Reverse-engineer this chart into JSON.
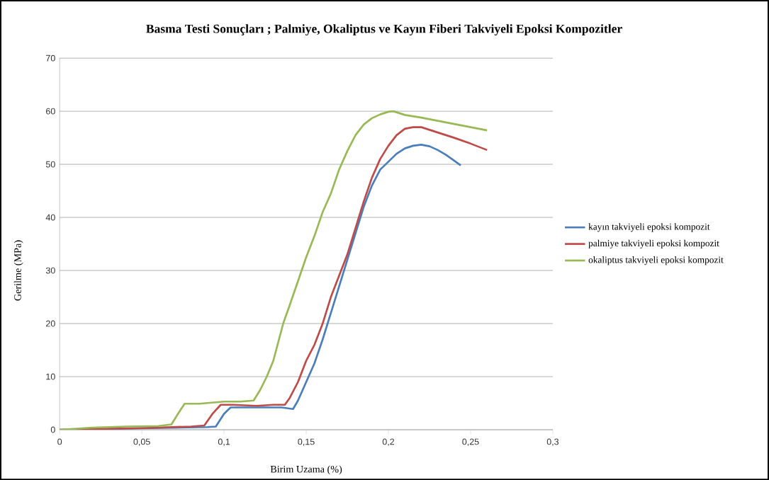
{
  "chart_data": {
    "type": "line",
    "title": "Basma Testi Sonuçları ; Palmiye, Okaliptus ve Kayın Fiberi Takviyeli Epoksi Kompozitler",
    "xlabel": "Birim Uzama (%)",
    "ylabel": "Gerilme  (MPa)",
    "xlim": [
      0,
      0.3
    ],
    "ylim": [
      0,
      70
    ],
    "xticks": [
      0,
      {
        "value": 0.05,
        "label": "0,05"
      },
      {
        "value": 0.1,
        "label": "0,1"
      },
      {
        "value": 0.15,
        "label": "0,15"
      },
      {
        "value": 0.2,
        "label": "0,2"
      },
      {
        "value": 0.25,
        "label": "0,25"
      },
      {
        "value": 0.3,
        "label": "0,3"
      }
    ],
    "yticks": [
      0,
      10,
      20,
      30,
      40,
      50,
      60,
      70
    ],
    "grid": "y",
    "legend": "right",
    "marker": "none",
    "line_style": "solid",
    "series": [
      {
        "name": "kayın takviyeli epoksi kompozit",
        "color": "#4a7ebb",
        "x": [
          0,
          0.09,
          0.095,
          0.1,
          0.104,
          0.12,
          0.135,
          0.142,
          0.145,
          0.15,
          0.155,
          0.16,
          0.165,
          0.17,
          0.175,
          0.18,
          0.185,
          0.19,
          0.195,
          0.2,
          0.205,
          0.21,
          0.215,
          0.22,
          0.225,
          0.23,
          0.235,
          0.24,
          0.244
        ],
        "values": [
          0,
          0.5,
          0.6,
          3,
          4.2,
          4.2,
          4.2,
          3.9,
          5.5,
          9,
          12.5,
          17,
          22,
          27,
          32,
          37,
          42,
          46,
          49,
          50.5,
          52,
          53,
          53.5,
          53.7,
          53.4,
          52.7,
          51.8,
          50.7,
          49.8
        ]
      },
      {
        "name": "palmiye takviyeli epoksi kompozit",
        "color": "#be4b48",
        "x": [
          0,
          0.05,
          0.08,
          0.088,
          0.093,
          0.098,
          0.105,
          0.12,
          0.13,
          0.137,
          0.14,
          0.145,
          0.15,
          0.155,
          0.16,
          0.165,
          0.17,
          0.175,
          0.18,
          0.185,
          0.19,
          0.195,
          0.2,
          0.205,
          0.21,
          0.215,
          0.22,
          0.23,
          0.24,
          0.25,
          0.26
        ],
        "values": [
          0,
          0.3,
          0.6,
          0.8,
          3,
          4.7,
          4.7,
          4.5,
          4.7,
          4.7,
          6,
          9,
          13,
          16,
          20,
          25,
          29,
          33,
          38,
          43,
          47.5,
          51,
          53.5,
          55.5,
          56.7,
          57,
          57,
          56,
          55,
          53.9,
          52.7
        ]
      },
      {
        "name": "okaliptus takviyeli epoksi kompozit",
        "color": "#98b954",
        "x": [
          0,
          0.02,
          0.04,
          0.06,
          0.068,
          0.072,
          0.076,
          0.085,
          0.1,
          0.11,
          0.118,
          0.122,
          0.126,
          0.13,
          0.136,
          0.14,
          0.145,
          0.15,
          0.155,
          0.16,
          0.165,
          0.17,
          0.175,
          0.18,
          0.185,
          0.19,
          0.195,
          0.2,
          0.203,
          0.21,
          0.22,
          0.23,
          0.24,
          0.25,
          0.26
        ],
        "values": [
          0,
          0.4,
          0.6,
          0.7,
          1,
          3,
          4.9,
          4.9,
          5.3,
          5.3,
          5.5,
          7.5,
          10,
          13,
          20,
          23.5,
          28,
          32.5,
          36.5,
          41,
          44.5,
          49,
          52.5,
          55.5,
          57.5,
          58.7,
          59.4,
          59.9,
          60,
          59.3,
          58.8,
          58.2,
          57.6,
          57,
          56.4
        ]
      }
    ]
  }
}
